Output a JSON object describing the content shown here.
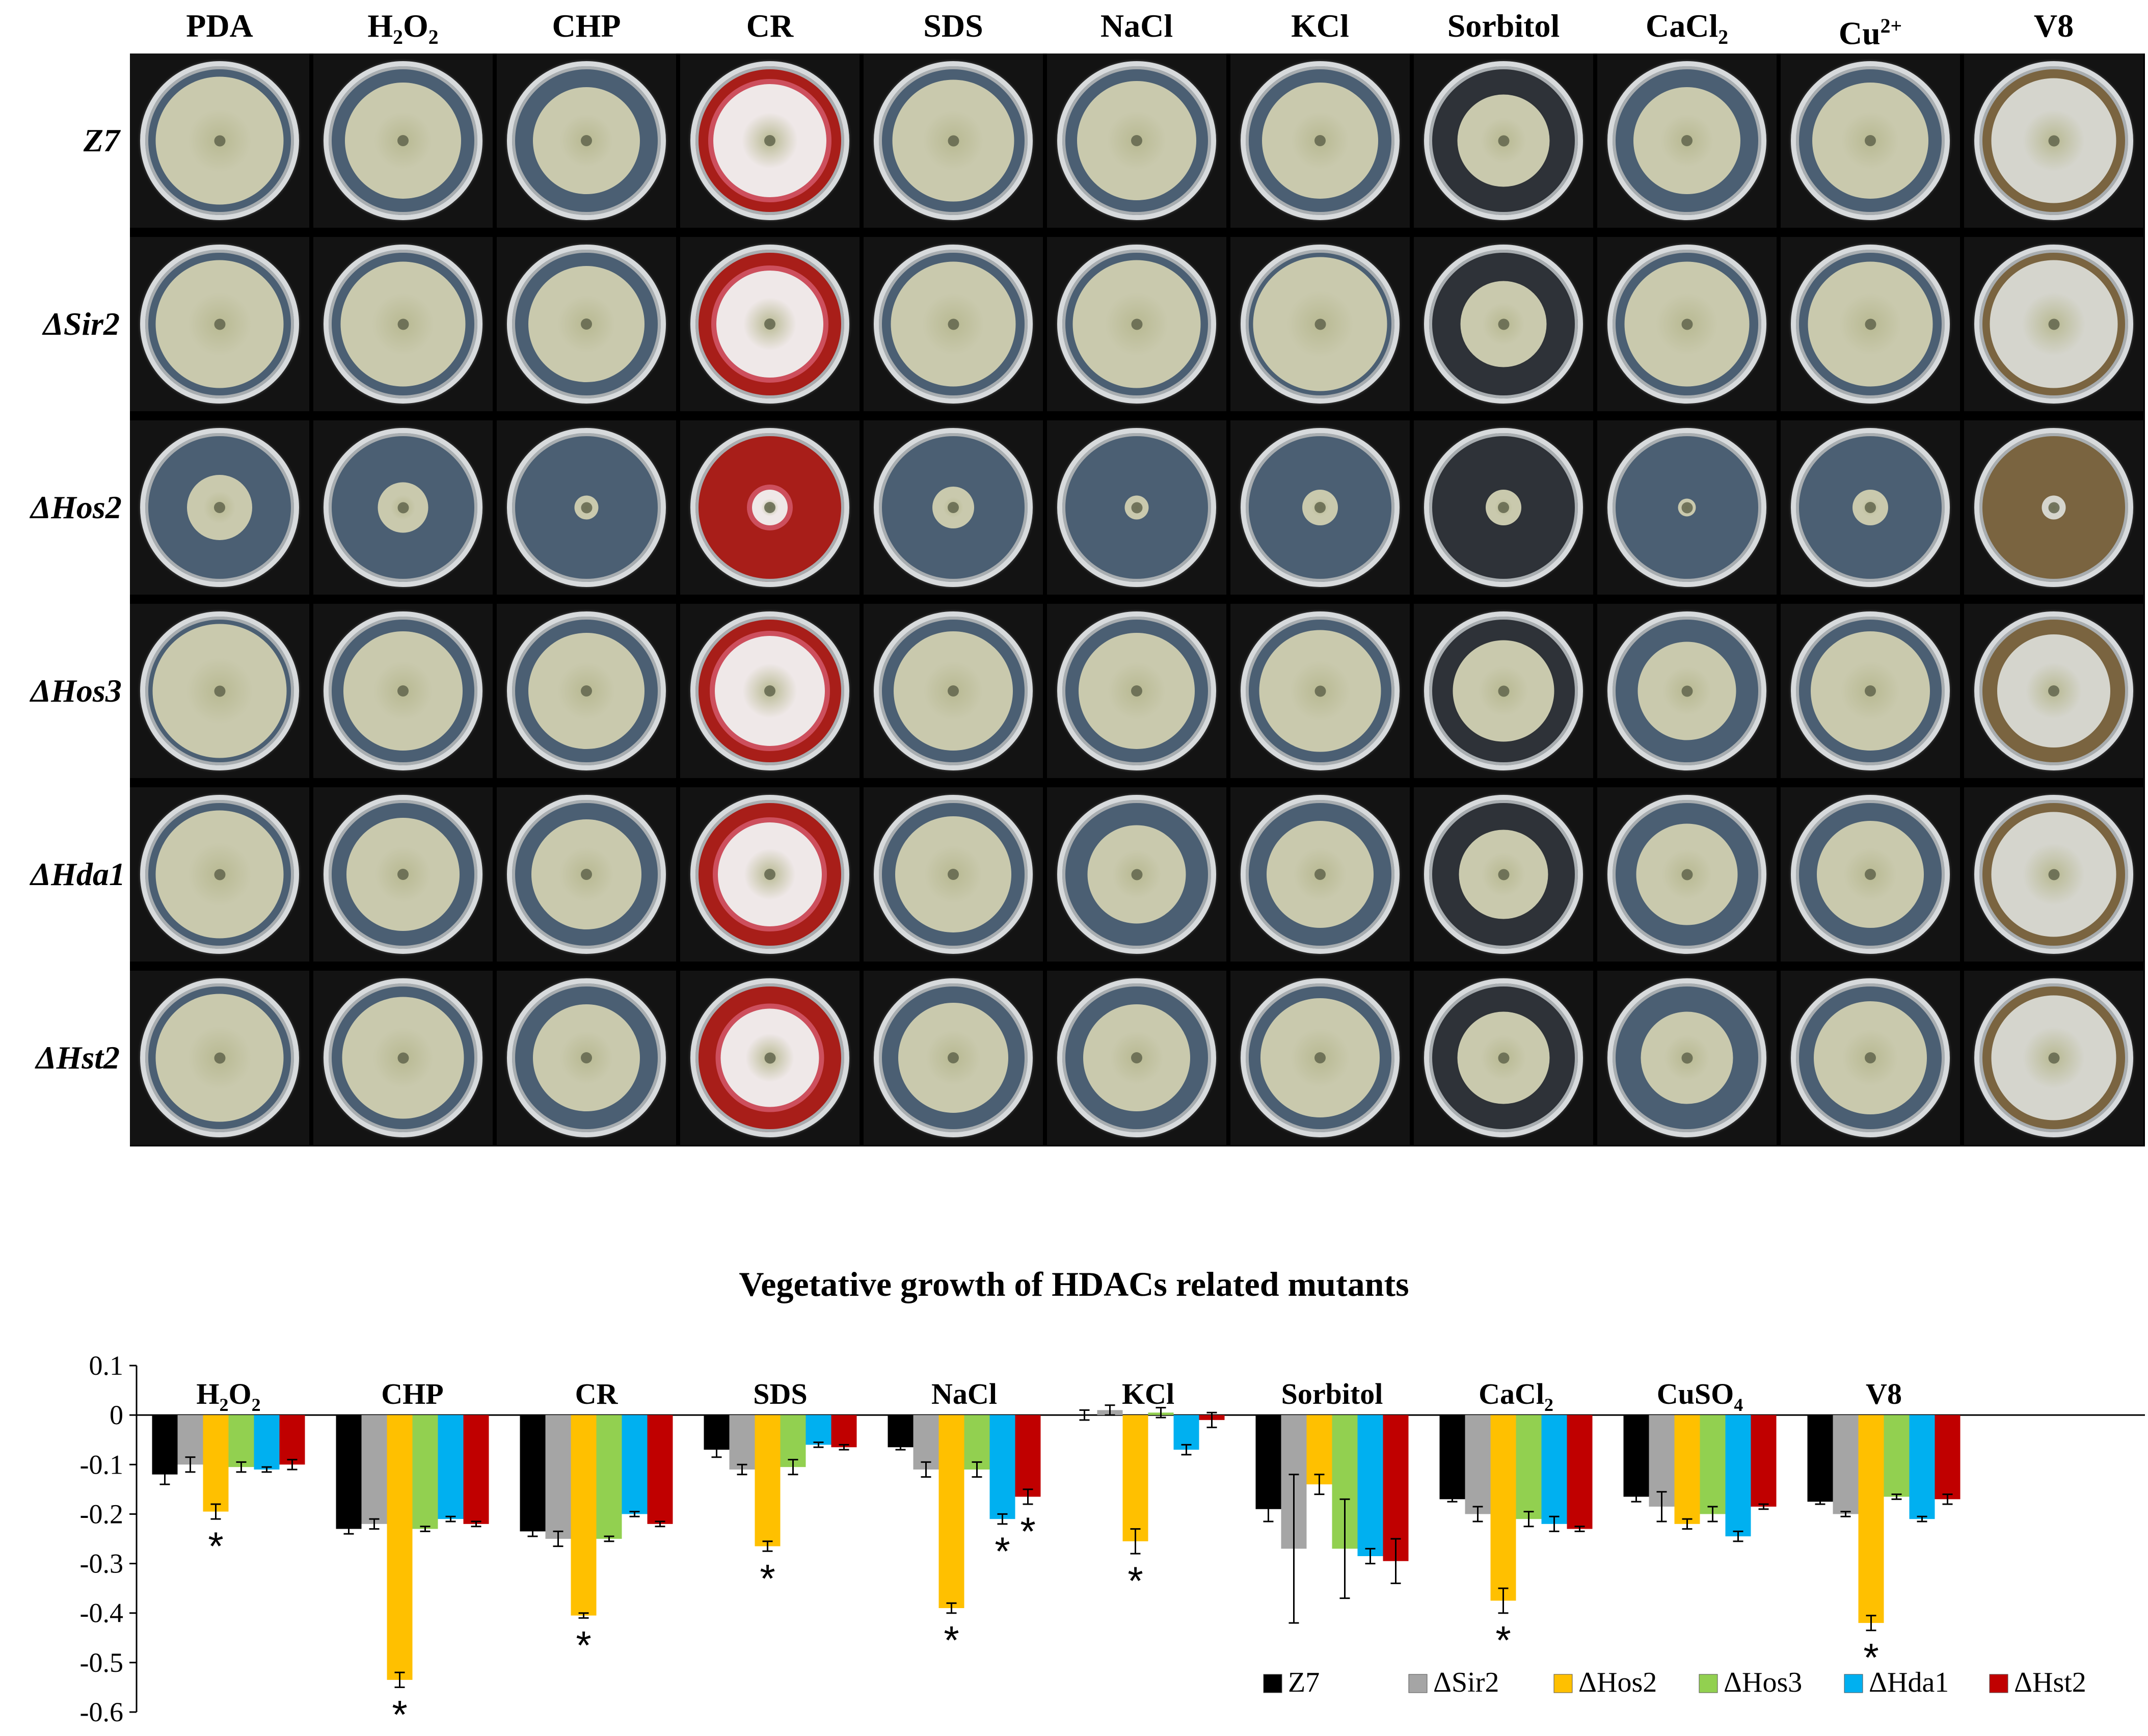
{
  "plate_panel": {
    "columns": [
      "PDA",
      "H2O2",
      "CHP",
      "CR",
      "SDS",
      "NaCl",
      "KCl",
      "Sorbitol",
      "CaCl2",
      "Cu2+",
      "V8"
    ],
    "rows": [
      "Z7",
      "ΔSir2",
      "ΔHos2",
      "ΔHos3",
      "ΔHda1",
      "ΔHst2"
    ],
    "agar_colors": {
      "default": "#4b5f73",
      "CR": "#a81e19",
      "V8": "#7a6440",
      "Sorbitol": "#2e3238"
    },
    "colony_colors": {
      "default": "#c9c9ad",
      "CR": "#efe8e8",
      "V8": "#d5d5cd"
    },
    "colony_diameter_fraction": [
      [
        0.86,
        0.78,
        0.72,
        0.76,
        0.82,
        0.8,
        0.78,
        0.62,
        0.72,
        0.78,
        0.84
      ],
      [
        0.86,
        0.84,
        0.78,
        0.72,
        0.84,
        0.86,
        0.9,
        0.58,
        0.84,
        0.84,
        0.86
      ],
      [
        0.44,
        0.34,
        0.16,
        0.24,
        0.28,
        0.16,
        0.24,
        0.24,
        0.12,
        0.24,
        0.16
      ],
      [
        0.9,
        0.8,
        0.78,
        0.74,
        0.8,
        0.78,
        0.82,
        0.68,
        0.66,
        0.8,
        0.76
      ],
      [
        0.86,
        0.76,
        0.74,
        0.7,
        0.78,
        0.66,
        0.72,
        0.6,
        0.68,
        0.72,
        0.84
      ],
      [
        0.86,
        0.82,
        0.72,
        0.66,
        0.74,
        0.72,
        0.8,
        0.62,
        0.62,
        0.76,
        0.84
      ]
    ]
  },
  "chart_data": {
    "type": "bar",
    "title": "Vegetative growth of HDACs related mutants",
    "categories": [
      "H2O2",
      "CHP",
      "CR",
      "SDS",
      "NaCl",
      "KCl",
      "Sorbitol",
      "CaCl2",
      "CuSO4",
      "V8"
    ],
    "ylim": [
      -0.6,
      0.1
    ],
    "yticks": [
      "0.1",
      "0",
      "-0.1",
      "-0.2",
      "-0.3",
      "-0.4",
      "-0.5",
      "-0.6"
    ],
    "ytick_values": [
      0.1,
      0,
      -0.1,
      -0.2,
      -0.3,
      -0.4,
      -0.5,
      -0.6
    ],
    "xlabel": "",
    "ylabel": "",
    "grid": false,
    "legend_position": "bottom-right",
    "series": [
      {
        "name": "Z7",
        "color": "#000000",
        "values": [
          -0.12,
          -0.23,
          -0.235,
          -0.07,
          -0.065,
          0.0,
          -0.19,
          -0.17,
          -0.165,
          -0.175
        ],
        "errors": [
          0.02,
          0.01,
          0.01,
          0.015,
          0.005,
          0.01,
          0.025,
          0.005,
          0.01,
          0.005
        ]
      },
      {
        "name": "ΔSir2",
        "color": "#a5a5a5",
        "values": [
          -0.1,
          -0.22,
          -0.25,
          -0.11,
          -0.11,
          0.01,
          -0.27,
          -0.2,
          -0.185,
          -0.2
        ],
        "errors": [
          0.015,
          0.01,
          0.015,
          0.01,
          0.015,
          0.01,
          0.15,
          0.015,
          0.03,
          0.005
        ]
      },
      {
        "name": "ΔHos2",
        "color": "#ffc000",
        "values": [
          -0.195,
          -0.535,
          -0.405,
          -0.265,
          -0.39,
          -0.255,
          -0.14,
          -0.375,
          -0.22,
          -0.42
        ],
        "errors": [
          0.015,
          0.015,
          0.005,
          0.01,
          0.01,
          0.025,
          0.02,
          0.025,
          0.01,
          0.015
        ]
      },
      {
        "name": "ΔHos3",
        "color": "#92d050",
        "values": [
          -0.105,
          -0.23,
          -0.25,
          -0.105,
          -0.11,
          0.005,
          -0.27,
          -0.21,
          -0.2,
          -0.165
        ],
        "errors": [
          0.01,
          0.005,
          0.005,
          0.015,
          0.015,
          0.01,
          0.1,
          0.015,
          0.015,
          0.005
        ]
      },
      {
        "name": "ΔHda1",
        "color": "#00b0f0",
        "values": [
          -0.11,
          -0.21,
          -0.2,
          -0.06,
          -0.21,
          -0.07,
          -0.285,
          -0.22,
          -0.245,
          -0.21
        ],
        "errors": [
          0.005,
          0.005,
          0.005,
          0.005,
          0.01,
          0.01,
          0.015,
          0.015,
          0.01,
          0.005
        ]
      },
      {
        "name": "ΔHst2",
        "color": "#c00000",
        "values": [
          -0.1,
          -0.22,
          -0.22,
          -0.065,
          -0.165,
          -0.01,
          -0.295,
          -0.23,
          -0.185,
          -0.17
        ],
        "errors": [
          0.01,
          0.005,
          0.005,
          0.005,
          0.015,
          0.015,
          0.045,
          0.005,
          0.005,
          0.01
        ]
      }
    ],
    "significance": [
      {
        "category": "H2O2",
        "series": "ΔHos2",
        "label": "*"
      },
      {
        "category": "CHP",
        "series": "ΔHos2",
        "label": "*"
      },
      {
        "category": "CR",
        "series": "ΔHos2",
        "label": "*"
      },
      {
        "category": "SDS",
        "series": "ΔHos2",
        "label": "*"
      },
      {
        "category": "NaCl",
        "series": "ΔHos2",
        "label": "*"
      },
      {
        "category": "NaCl",
        "series": "ΔHda1",
        "label": "*"
      },
      {
        "category": "NaCl",
        "series": "ΔHst2",
        "label": "*"
      },
      {
        "category": "KCl",
        "series": "ΔHos2",
        "label": "*"
      },
      {
        "category": "CaCl2",
        "series": "ΔHos2",
        "label": "*"
      },
      {
        "category": "V8",
        "series": "ΔHos2",
        "label": "*"
      }
    ]
  }
}
